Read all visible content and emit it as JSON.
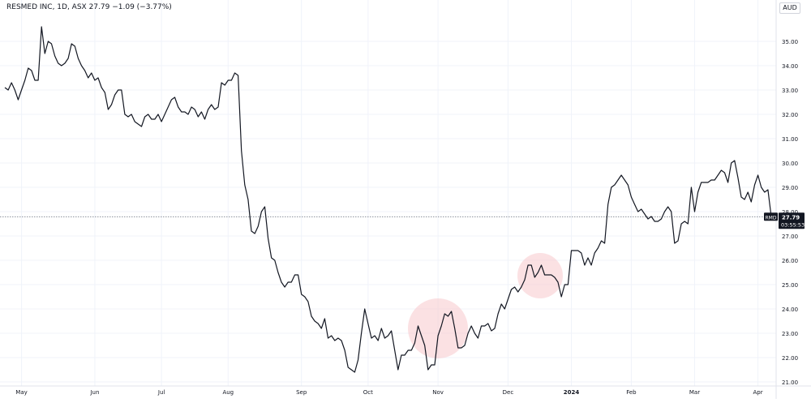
{
  "legend": {
    "symbol": "RESMED INC, 1D, ASX",
    "last": "27.79",
    "change": "−1.09 (−3.77%)"
  },
  "currency": "AUD",
  "price_tag": {
    "ticker": "RMD",
    "price": "27.79",
    "countdown": "03:55:53"
  },
  "colors": {
    "line": "#131722",
    "grid": "#f0f3fa",
    "axis_text": "#131722",
    "highlight": "#f8c8cc",
    "tag_bg": "#131722",
    "tag_text": "#ffffff"
  },
  "chart_data": {
    "type": "line",
    "title": "",
    "xlabel": "",
    "ylabel": "",
    "ylim": [
      20.9,
      36.3
    ],
    "y_ticks": [
      35,
      34,
      33,
      32,
      31,
      30,
      29,
      28,
      27,
      26,
      25,
      24,
      23,
      22,
      21
    ],
    "y_tick_labels": [
      "35.00",
      "34.00",
      "33.00",
      "32.00",
      "31.00",
      "30.00",
      "29.00",
      "28.00",
      "27.00",
      "26.00",
      "25.00",
      "24.00",
      "23.00",
      "22.00",
      "21.00"
    ],
    "x_tick_labels": [
      "May",
      "Jun",
      "Jul",
      "Aug",
      "Sep",
      "Oct",
      "Nov",
      "Dec",
      "2024",
      "Feb",
      "Mar",
      "Apr"
    ],
    "x_tick_index": [
      5,
      27,
      47,
      67,
      89,
      109,
      130,
      151,
      170,
      188,
      207,
      226
    ],
    "last_value": 27.79,
    "grid": true,
    "series": [
      {
        "values": [
          33.1,
          33.0,
          33.3,
          33.0,
          32.6,
          33.0,
          33.4,
          33.9,
          33.8,
          33.4,
          33.4,
          35.6,
          34.5,
          35.0,
          34.9,
          34.4,
          34.1,
          34.0,
          34.1,
          34.3,
          34.9,
          34.8,
          34.3,
          34.0,
          33.8,
          33.5,
          33.7,
          33.4,
          33.5,
          33.1,
          32.9,
          32.2,
          32.4,
          32.8,
          33.0,
          33.0,
          32.0,
          31.9,
          32.0,
          31.7,
          31.6,
          31.5,
          31.9,
          32.0,
          31.8,
          31.8,
          32.0,
          31.7,
          32.0,
          32.3,
          32.6,
          32.7,
          32.3,
          32.1,
          32.1,
          32.0,
          32.3,
          32.2,
          31.9,
          32.1,
          31.8,
          32.2,
          32.4,
          32.2,
          32.3,
          33.3,
          33.2,
          33.4,
          33.4,
          33.7,
          33.6,
          30.5,
          29.1,
          28.5,
          27.2,
          27.1,
          27.4,
          28.0,
          28.2,
          26.9,
          26.1,
          26.0,
          25.5,
          25.1,
          24.9,
          25.1,
          25.1,
          25.4,
          25.4,
          24.6,
          24.5,
          24.3,
          23.7,
          23.5,
          23.4,
          23.2,
          23.6,
          22.8,
          22.9,
          22.7,
          22.8,
          22.7,
          22.3,
          21.6,
          21.5,
          21.4,
          21.9,
          23.0,
          24.0,
          23.4,
          22.8,
          22.9,
          22.7,
          23.2,
          22.8,
          22.9,
          23.1,
          22.3,
          21.5,
          22.1,
          22.1,
          22.3,
          22.3,
          22.6,
          23.3,
          22.9,
          22.5,
          21.5,
          21.7,
          21.7,
          22.9,
          23.3,
          23.8,
          23.7,
          23.9,
          23.2,
          22.4,
          22.4,
          22.5,
          23.0,
          23.3,
          23.0,
          22.8,
          23.3,
          23.3,
          23.4,
          23.1,
          23.2,
          23.8,
          24.2,
          24.0,
          24.4,
          24.8,
          24.9,
          24.7,
          24.9,
          25.2,
          25.8,
          25.8,
          25.3,
          25.5,
          25.8,
          25.4,
          25.4,
          25.4,
          25.3,
          25.1,
          24.5,
          25.0,
          25.0,
          26.4,
          26.4,
          26.4,
          26.3,
          25.8,
          26.1,
          25.8,
          26.3,
          26.5,
          26.8,
          26.7,
          28.3,
          29.0,
          29.1,
          29.3,
          29.5,
          29.3,
          29.1,
          28.6,
          28.3,
          28.0,
          28.1,
          27.9,
          27.7,
          27.8,
          27.6,
          27.6,
          27.7,
          28.0,
          28.2,
          28.0,
          26.7,
          26.8,
          27.5,
          27.6,
          27.5,
          29.0,
          28.0,
          28.8,
          29.2,
          29.2,
          29.2,
          29.3,
          29.3,
          29.5,
          29.7,
          29.6,
          29.2,
          30.0,
          30.1,
          29.4,
          28.6,
          28.5,
          28.8,
          28.4,
          29.1,
          29.5,
          29.0,
          28.8,
          28.9,
          27.79
        ]
      }
    ]
  }
}
